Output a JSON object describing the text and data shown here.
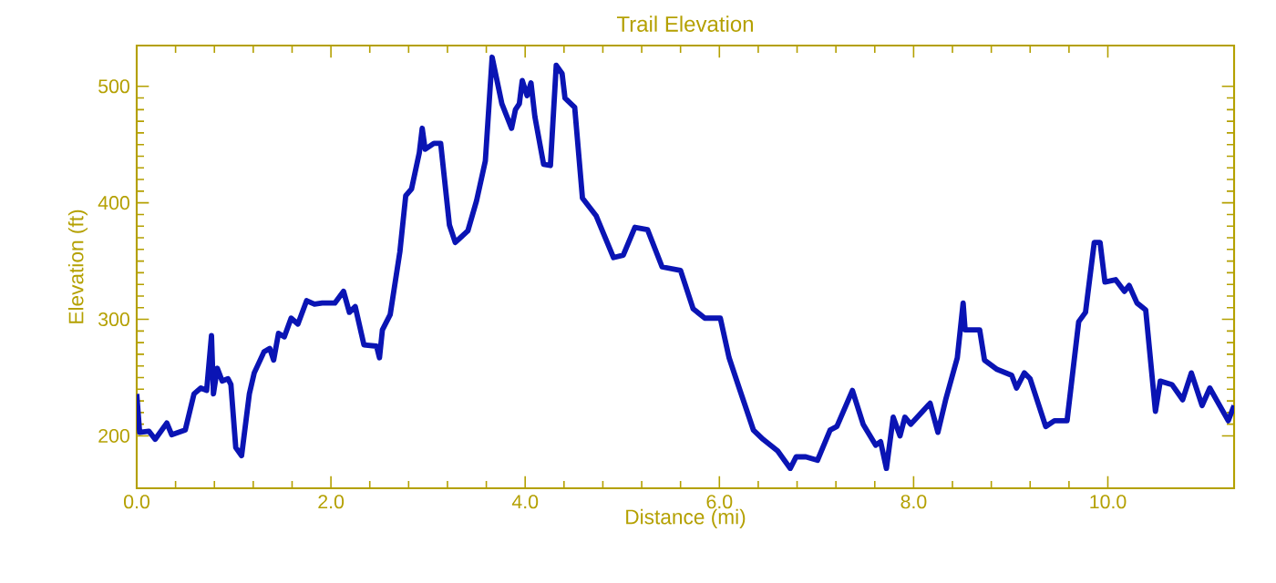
{
  "chart_data": {
    "type": "line",
    "title": "Trail Elevation",
    "xlabel": "Distance (mi)",
    "ylabel": "Elevation (ft)",
    "x": [
      0.0,
      0.03,
      0.125,
      0.19,
      0.31,
      0.36,
      0.5,
      0.59,
      0.66,
      0.72,
      0.77,
      0.79,
      0.83,
      0.88,
      0.94,
      0.97,
      1.02,
      1.08,
      1.16,
      1.21,
      1.31,
      1.37,
      1.41,
      1.46,
      1.52,
      1.59,
      1.66,
      1.75,
      1.83,
      1.91,
      2.04,
      2.13,
      2.19,
      2.25,
      2.34,
      2.47,
      2.5,
      2.53,
      2.61,
      2.71,
      2.77,
      2.83,
      2.91,
      2.94,
      2.97,
      3.06,
      3.13,
      3.22,
      3.28,
      3.41,
      3.5,
      3.59,
      3.66,
      3.76,
      3.86,
      3.9,
      3.94,
      3.97,
      4.02,
      4.06,
      4.1,
      4.19,
      4.26,
      4.32,
      4.38,
      4.41,
      4.51,
      4.59,
      4.73,
      4.91,
      5.01,
      5.13,
      5.26,
      5.41,
      5.6,
      5.73,
      5.85,
      6.01,
      6.1,
      6.2,
      6.35,
      6.45,
      6.6,
      6.73,
      6.79,
      6.89,
      7.01,
      7.14,
      7.21,
      7.37,
      7.48,
      7.61,
      7.66,
      7.72,
      7.79,
      7.86,
      7.91,
      7.97,
      8.17,
      8.25,
      8.33,
      8.45,
      8.51,
      8.53,
      8.68,
      8.73,
      8.86,
      9.01,
      9.06,
      9.14,
      9.2,
      9.36,
      9.45,
      9.58,
      9.7,
      9.77,
      9.86,
      9.92,
      9.97,
      10.08,
      10.17,
      10.22,
      10.3,
      10.39,
      10.49,
      10.54,
      10.66,
      10.77,
      10.86,
      10.97,
      11.05,
      11.24,
      11.3
    ],
    "values": [
      236,
      203,
      204,
      197,
      211,
      201,
      205,
      236,
      241,
      239,
      286,
      236,
      258,
      247,
      249,
      244,
      190,
      183,
      236,
      254,
      272,
      275,
      265,
      288,
      285,
      301,
      296,
      316,
      313,
      314,
      314,
      324,
      306,
      311,
      278,
      277,
      267,
      291,
      304,
      358,
      406,
      412,
      443,
      464,
      446,
      451,
      451,
      381,
      366,
      376,
      402,
      436,
      525,
      485,
      464,
      480,
      485,
      505,
      492,
      503,
      474,
      433,
      432,
      518,
      511,
      490,
      482,
      404,
      389,
      353,
      355,
      379,
      377,
      345,
      342,
      309,
      301,
      301,
      267,
      242,
      205,
      197,
      187,
      172,
      182,
      182,
      179,
      205,
      208,
      239,
      210,
      192,
      195,
      172,
      216,
      200,
      216,
      210,
      228,
      203,
      231,
      267,
      314,
      291,
      291,
      265,
      257,
      252,
      241,
      254,
      249,
      208,
      213,
      213,
      298,
      306,
      366,
      366,
      332,
      334,
      324,
      329,
      314,
      308,
      221,
      247,
      244,
      231,
      254,
      226,
      241,
      213,
      226
    ],
    "color": "#0a14b4",
    "xlim": [
      0,
      11.3
    ],
    "ylim": [
      155,
      535
    ],
    "xticks": [
      {
        "value": 0,
        "label": "0.0"
      },
      {
        "value": 2,
        "label": "2.0"
      },
      {
        "value": 4,
        "label": "4.0"
      },
      {
        "value": 6,
        "label": "6.0"
      },
      {
        "value": 8,
        "label": "8.0"
      },
      {
        "value": 10,
        "label": "10.0"
      }
    ],
    "yticks": [
      200,
      300,
      400,
      500
    ],
    "marker": "none",
    "line_style": "solid"
  }
}
